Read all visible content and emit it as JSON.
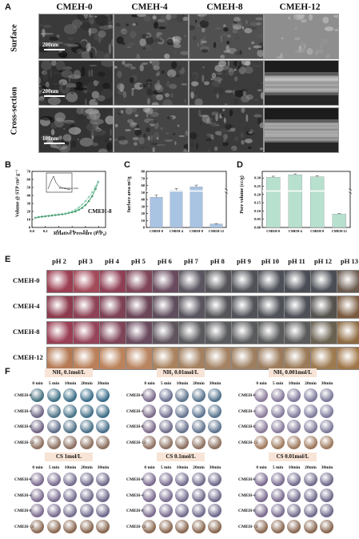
{
  "panelA": {
    "label": "A",
    "columns": [
      "CMEH-0",
      "CMEH-4",
      "CMEH-8",
      "CMEH-12"
    ],
    "rows": [
      "Surface",
      "Cross-section"
    ],
    "scale_bars": [
      "200nm",
      "200nm",
      "100nm"
    ]
  },
  "panelB": {
    "label": "B",
    "ylabel": "Volume @ STP cm³ g⁻¹",
    "xlabel": "Relative Pressure (P/P₀)",
    "series_label": "CMEH-8",
    "inset_xlabel": "Pore Diameter (nm)",
    "chart_data": {
      "type": "line",
      "xlim": [
        0,
        1.1
      ],
      "ylim": [
        0,
        70
      ],
      "xticks": [
        "0.0",
        "0.2",
        "0.4",
        "0.6",
        "0.8",
        "1.0"
      ],
      "yticks": [
        "0",
        "10",
        "20",
        "30",
        "40",
        "50",
        "60",
        "70"
      ],
      "series": [
        {
          "name": "adsorption",
          "x": [
            0.05,
            0.1,
            0.15,
            0.2,
            0.25,
            0.3,
            0.35,
            0.4,
            0.45,
            0.5,
            0.55,
            0.6,
            0.65,
            0.7,
            0.75,
            0.8,
            0.85,
            0.9,
            0.95,
            0.99
          ],
          "y": [
            12,
            13,
            13.5,
            14,
            14.5,
            15,
            15.5,
            16,
            16.5,
            17,
            18,
            19,
            20,
            22,
            24.5,
            28,
            33,
            39,
            48,
            57
          ]
        },
        {
          "name": "desorption",
          "x": [
            0.99,
            0.95,
            0.9,
            0.85,
            0.8,
            0.75,
            0.7,
            0.65,
            0.6,
            0.55,
            0.5
          ],
          "y": [
            57,
            51,
            44,
            38,
            33,
            28.5,
            25,
            22,
            20,
            18.5,
            17.5
          ]
        }
      ]
    }
  },
  "panelC": {
    "label": "C",
    "ylabel": "Surface area m²/g",
    "chart_data": {
      "type": "bar",
      "categories": [
        "CMEH-0",
        "CMEH-4",
        "CMEH-8",
        "CMEH-12"
      ],
      "values": [
        43,
        53,
        58,
        5
      ],
      "errors": [
        3,
        2.5,
        2.5,
        0.5
      ],
      "yticks": [
        "0",
        "10",
        "20",
        "30",
        "40",
        "50",
        "60",
        "70",
        "80"
      ],
      "ylim": [
        0,
        80
      ],
      "color": "#a9c3e3"
    }
  },
  "panelD": {
    "label": "D",
    "ylabel": "Pore volume (cc/g)",
    "chart_data": {
      "type": "bar",
      "categories": [
        "CMEH-0",
        "CMEH-4",
        "CMEH-8",
        "CMEH-12"
      ],
      "values": [
        0.305,
        0.32,
        0.308,
        0.082
      ],
      "errors": [
        0.006,
        0.005,
        0.005,
        0.002
      ],
      "yticks": [
        "0.00",
        "0.05",
        "0.10",
        "0.15",
        "0.20",
        "0.25",
        "0.30"
      ],
      "ylim": [
        0,
        0.34
      ],
      "color": "#b8e0cf"
    }
  },
  "panelE": {
    "label": "E",
    "ph": [
      "pH 2",
      "pH 3",
      "pH 4",
      "pH 5",
      "pH 6",
      "pH 7",
      "pH 8",
      "pH 9",
      "pH 10",
      "pH 11",
      "pH 12",
      "pH 13"
    ],
    "rows": [
      "CMEH-0",
      "CMEH-4",
      "CMEH-8",
      "CMEH-12"
    ]
  },
  "panelF": {
    "label": "F",
    "times": [
      "0 min",
      "5 min",
      "10min",
      "20min",
      "30min"
    ],
    "rows": [
      "CMEH-0",
      "CMEH-4",
      "CMEH-8",
      "CMEH-12"
    ],
    "groups": [
      "NH₃ 0.1mol/L",
      "NH₃ 0.01mol/L",
      "NH₃ 0.001mol/L",
      "CS 1mol/L",
      "CS 0.1mol/L",
      "CS 0.01mol/L"
    ]
  }
}
